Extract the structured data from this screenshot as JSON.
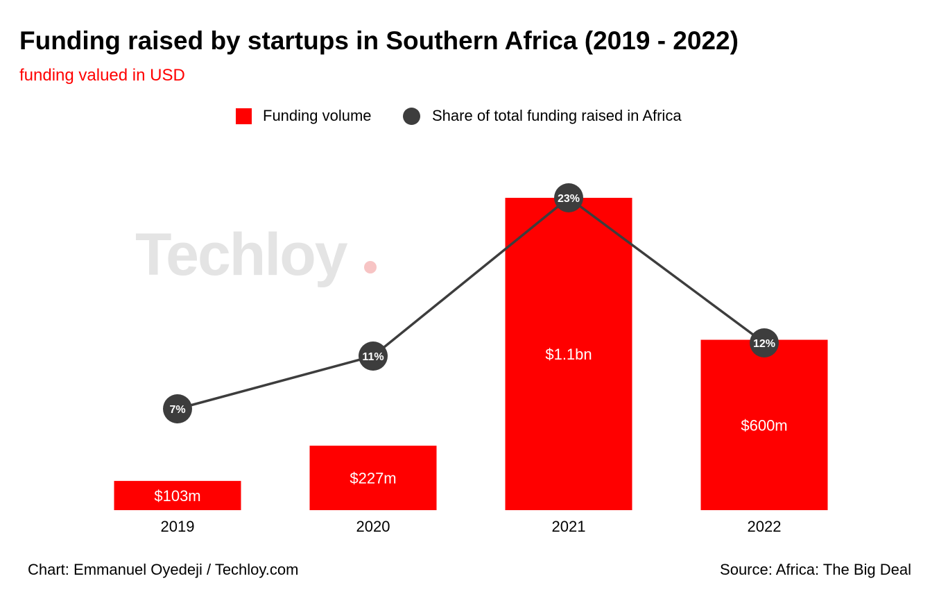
{
  "header": {
    "title": "Funding raised by startups in Southern Africa (2019 - 2022)",
    "subtitle": "funding valued in USD"
  },
  "legend": {
    "bars_label": "Funding volume",
    "line_label": "Share of total funding raised in Africa"
  },
  "watermark": "Techloy",
  "footer": {
    "credit": "Chart: Emmanuel Oyedeji / Techloy.com",
    "source": "Source: Africa: The Big Deal"
  },
  "colors": {
    "bar": "#ff0000",
    "line": "#3d3d3d",
    "marker": "#3d3d3d",
    "subtitle": "#ff0000"
  },
  "chart_data": {
    "type": "bar",
    "title": "Funding raised by startups in Southern Africa (2019 - 2022)",
    "subtitle": "funding valued in USD",
    "categories": [
      "2019",
      "2020",
      "2021",
      "2022"
    ],
    "series": [
      {
        "name": "Funding volume",
        "type": "bar",
        "unit": "USD millions",
        "values": [
          103,
          227,
          1100,
          600
        ],
        "labels": [
          "$103m",
          "$227m",
          "$1.1bn",
          "$600m"
        ]
      },
      {
        "name": "Share of total funding raised in Africa",
        "type": "line",
        "unit": "percent",
        "values": [
          7,
          11,
          23,
          12
        ],
        "labels": [
          "7%",
          "11%",
          "23%",
          "12%"
        ]
      }
    ],
    "xlabel": "",
    "ylabel": "",
    "grid": false,
    "legend_position": "top-center"
  }
}
